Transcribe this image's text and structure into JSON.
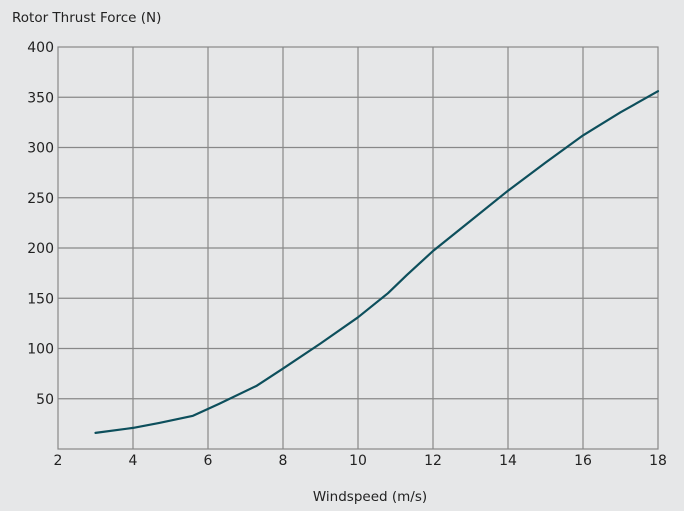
{
  "chart_data": {
    "type": "line",
    "title": "Rotor Thrust Force (N)",
    "xlabel": "Windspeed  (m/s)",
    "ylabel": "",
    "xlim": [
      2,
      18
    ],
    "ylim": [
      0,
      400
    ],
    "x_ticks": [
      2,
      4,
      6,
      8,
      10,
      12,
      14,
      16,
      18
    ],
    "y_ticks": [
      50,
      100,
      150,
      200,
      250,
      300,
      350,
      400
    ],
    "grid": true,
    "legend": "none",
    "colors": {
      "line": "#0d4f5c",
      "grid": "#888888",
      "background": "#e6e7e8"
    },
    "series": [
      {
        "x": [
          3.0,
          4.0,
          4.7,
          5.6,
          6.3,
          7.3,
          8.0,
          9.0,
          10.0,
          10.8,
          11.3,
          12.0,
          13.0,
          14.0,
          15.0,
          16.0,
          17.0,
          18.0
        ],
        "values": [
          16,
          21,
          26,
          33,
          45,
          63,
          80,
          105,
          131,
          155,
          173,
          197,
          227,
          257,
          285,
          312,
          335,
          356
        ]
      }
    ]
  }
}
